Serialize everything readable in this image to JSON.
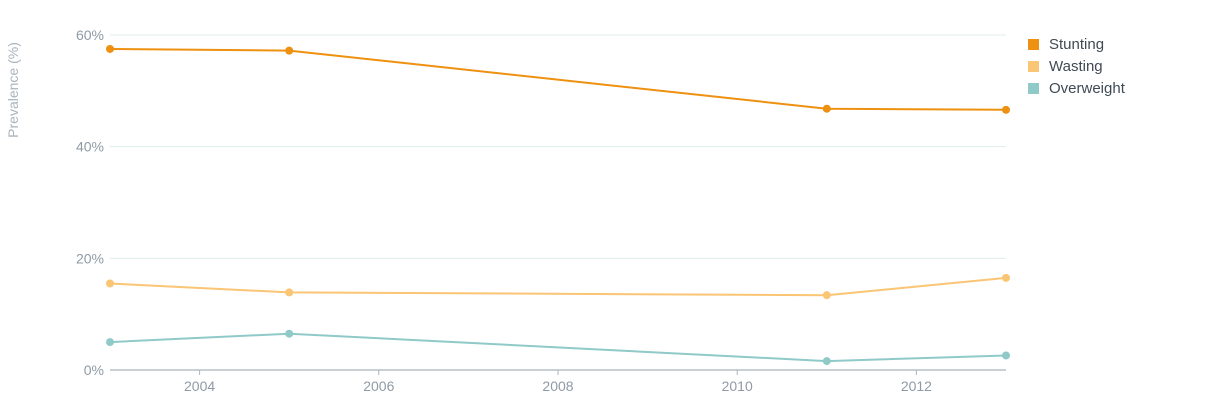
{
  "chart_data": {
    "type": "line",
    "ylabel": "Prevalence (%)",
    "xlabel": "",
    "xlim": [
      2003,
      2013
    ],
    "ylim": [
      0,
      60
    ],
    "x_ticks": [
      "2004",
      "2006",
      "2008",
      "2010",
      "2012"
    ],
    "y_ticks": [
      "0%",
      "20%",
      "40%",
      "60%"
    ],
    "grid": "horizontal",
    "legend_position": "top-right",
    "series": [
      {
        "name": "Stunting",
        "color": "#ee9010",
        "points": [
          [
            2003,
            57.5
          ],
          [
            2005,
            57.2
          ],
          [
            2011,
            46.8
          ],
          [
            2013,
            46.6
          ]
        ]
      },
      {
        "name": "Wasting",
        "color": "#fac574",
        "points": [
          [
            2003,
            15.5
          ],
          [
            2005,
            13.9
          ],
          [
            2011,
            13.4
          ],
          [
            2013,
            16.5
          ]
        ]
      },
      {
        "name": "Overweight",
        "color": "#8fc9c8",
        "points": [
          [
            2003,
            5.0
          ],
          [
            2005,
            6.5
          ],
          [
            2011,
            1.6
          ],
          [
            2013,
            2.6
          ]
        ]
      }
    ]
  }
}
